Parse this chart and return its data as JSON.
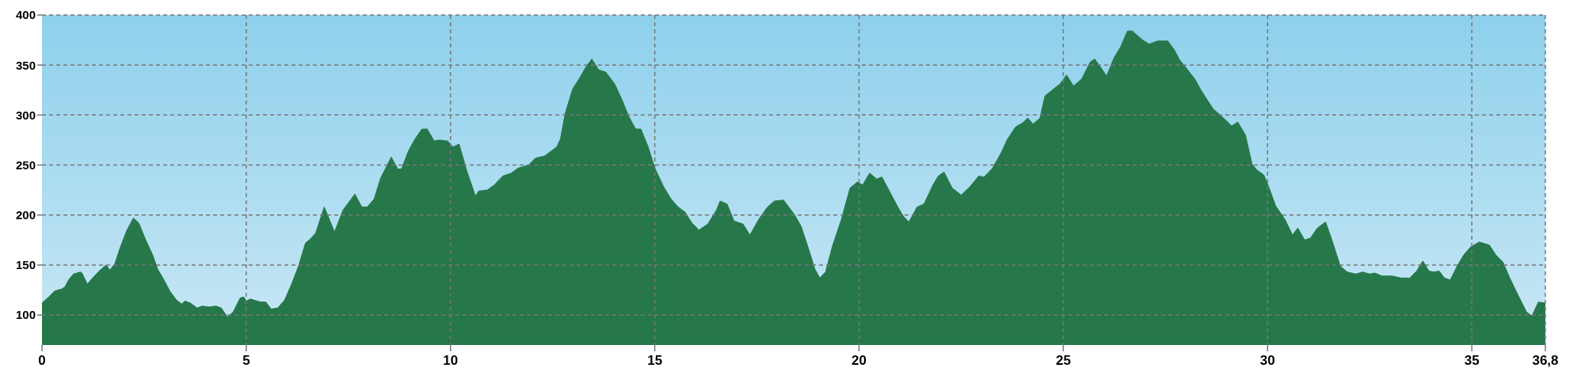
{
  "chart_data": {
    "type": "area",
    "x": [
      0,
      0.14,
      0.31,
      0.48,
      0.56,
      0.65,
      0.77,
      0.94,
      0.98,
      1.11,
      1.24,
      1.4,
      1.57,
      1.66,
      1.78,
      1.91,
      2.08,
      2.24,
      2.37,
      2.54,
      2.71,
      2.83,
      2.96,
      3.13,
      3.29,
      3.42,
      3.5,
      3.63,
      3.8,
      3.92,
      4.09,
      4.26,
      4.39,
      4.54,
      4.68,
      4.85,
      4.94,
      5.0,
      5.1,
      5.35,
      5.48,
      5.61,
      5.77,
      5.94,
      6.11,
      6.28,
      6.45,
      6.57,
      6.7,
      6.91,
      7.16,
      7.37,
      7.66,
      7.83,
      7.96,
      8.13,
      8.29,
      8.55,
      8.71,
      8.8,
      8.97,
      9.13,
      9.3,
      9.43,
      9.6,
      9.72,
      9.93,
      10.06,
      10.21,
      10.4,
      10.61,
      10.69,
      10.9,
      11.07,
      11.28,
      11.49,
      11.66,
      11.91,
      12.08,
      12.3,
      12.47,
      12.6,
      12.69,
      12.81,
      12.99,
      13.16,
      13.33,
      13.46,
      13.63,
      13.8,
      14.02,
      14.19,
      14.36,
      14.53,
      14.66,
      14.84,
      15.0,
      15.22,
      15.4,
      15.57,
      15.74,
      15.91,
      16.08,
      16.3,
      16.51,
      16.6,
      16.77,
      16.94,
      17.16,
      17.33,
      17.55,
      17.76,
      17.93,
      18.15,
      18.41,
      18.58,
      18.75,
      18.92,
      19.04,
      19.18,
      19.35,
      19.57,
      19.78,
      19.96,
      20.09,
      20.26,
      20.43,
      20.56,
      20.73,
      20.95,
      21.08,
      21.22,
      21.42,
      21.59,
      21.81,
      21.94,
      22.08,
      22.28,
      22.5,
      22.71,
      22.93,
      23.06,
      23.27,
      23.49,
      23.62,
      23.83,
      24.0,
      24.13,
      24.26,
      24.43,
      24.55,
      24.79,
      24.92,
      25.08,
      25.25,
      25.45,
      25.66,
      25.77,
      25.91,
      26.06,
      26.24,
      26.4,
      26.57,
      26.69,
      26.94,
      27.1,
      27.31,
      27.56,
      27.72,
      27.85,
      28.01,
      28.22,
      28.34,
      28.51,
      28.67,
      28.84,
      29.0,
      29.12,
      29.27,
      29.46,
      29.62,
      29.74,
      29.91,
      30.03,
      30.2,
      30.42,
      30.61,
      30.74,
      30.91,
      31.05,
      31.22,
      31.42,
      31.56,
      31.78,
      31.95,
      32.16,
      32.33,
      32.5,
      32.63,
      32.8,
      33.05,
      33.27,
      33.48,
      33.65,
      33.8,
      33.95,
      34.07,
      34.2,
      34.33,
      34.47,
      34.63,
      34.8,
      34.97,
      35.18,
      35.43,
      35.59,
      35.76,
      35.93,
      36.13,
      36.34,
      36.47,
      36.63,
      36.8
    ],
    "values": [
      112,
      117,
      124,
      126,
      128,
      135,
      141,
      143,
      142,
      131,
      137,
      144,
      150,
      145,
      151,
      167,
      185,
      197,
      192,
      175,
      160,
      146,
      137,
      124,
      115,
      111,
      114,
      112,
      107,
      109,
      108,
      109,
      107,
      98,
      103,
      117,
      118,
      114,
      116,
      113,
      113,
      106,
      107,
      115,
      131,
      149,
      172,
      176,
      182,
      208,
      183,
      205,
      221,
      208,
      208,
      216,
      237,
      258,
      246,
      246,
      264,
      276,
      286,
      286,
      274,
      275,
      274,
      268,
      271,
      244,
      219,
      224,
      225,
      230,
      239,
      242,
      247,
      250,
      257,
      259,
      264,
      268,
      276,
      302,
      326,
      337,
      349,
      356,
      345,
      343,
      331,
      316,
      299,
      286,
      286,
      268,
      247,
      228,
      216,
      208,
      203,
      192,
      185,
      191,
      205,
      214,
      211,
      194,
      191,
      180,
      196,
      208,
      214,
      215,
      201,
      189,
      168,
      146,
      137,
      143,
      169,
      196,
      227,
      233,
      230,
      242,
      236,
      238,
      225,
      208,
      199,
      193,
      208,
      211,
      230,
      239,
      243,
      227,
      220,
      228,
      239,
      238,
      247,
      263,
      275,
      288,
      292,
      297,
      291,
      297,
      319,
      327,
      331,
      340,
      329,
      336,
      353,
      356,
      348,
      339,
      357,
      368,
      384,
      384,
      375,
      371,
      374,
      374,
      365,
      355,
      347,
      336,
      327,
      316,
      306,
      300,
      294,
      289,
      293,
      280,
      251,
      245,
      240,
      228,
      209,
      196,
      180,
      187,
      175,
      177,
      187,
      193,
      177,
      149,
      143,
      141,
      143,
      141,
      142,
      139,
      139,
      137,
      137,
      144,
      154,
      144,
      143,
      144,
      137,
      135,
      148,
      160,
      168,
      173,
      170,
      160,
      153,
      137,
      120,
      103,
      99,
      113,
      112
    ],
    "color": "#26784a",
    "xlim": [
      0,
      36.8
    ],
    "xticks": [
      0,
      5,
      10,
      15,
      20,
      25,
      30,
      35,
      {
        "value": 36.8,
        "label": "36,8"
      }
    ],
    "ylim": [
      70,
      400
    ],
    "yticks": [
      100,
      150,
      200,
      250,
      300,
      350,
      400
    ],
    "grid": true
  }
}
